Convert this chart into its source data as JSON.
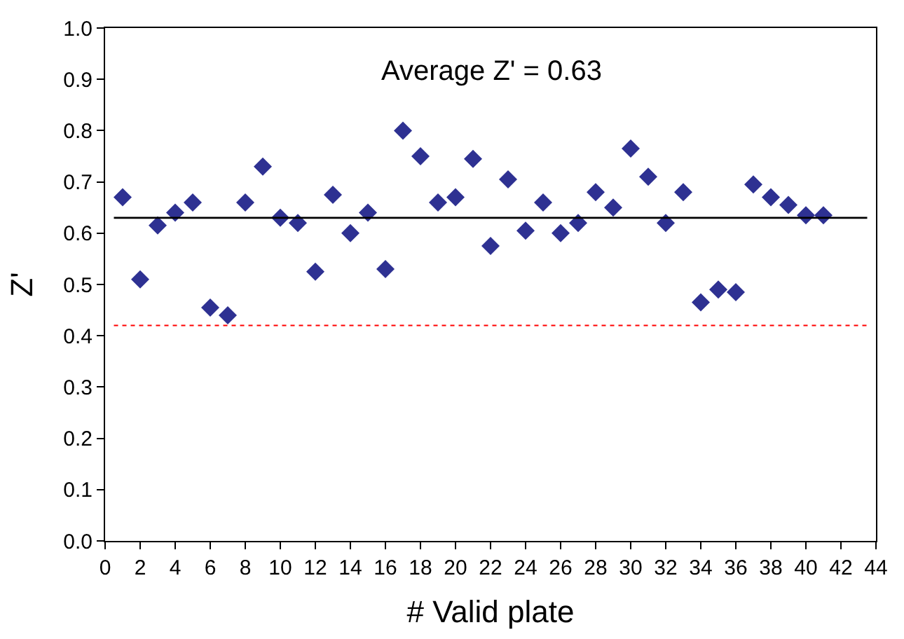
{
  "chart_data": {
    "type": "scatter",
    "xlabel": "# Valid plate",
    "ylabel": "Z'",
    "x": [
      1,
      2,
      3,
      4,
      5,
      6,
      7,
      8,
      9,
      10,
      11,
      12,
      13,
      14,
      15,
      16,
      17,
      18,
      19,
      20,
      21,
      22,
      23,
      24,
      25,
      26,
      27,
      28,
      29,
      30,
      31,
      32,
      33,
      34,
      35,
      36,
      37,
      38,
      39,
      40,
      41
    ],
    "series": [
      {
        "color": "#2e3192",
        "values": [
          0.67,
          0.51,
          0.615,
          0.64,
          0.66,
          0.455,
          0.44,
          0.66,
          0.73,
          0.63,
          0.62,
          0.525,
          0.675,
          0.6,
          0.64,
          0.53,
          0.8,
          0.75,
          0.66,
          0.67,
          0.745,
          0.575,
          0.705,
          0.605,
          0.66,
          0.6,
          0.62,
          0.68,
          0.65,
          0.765,
          0.71,
          0.62,
          0.68,
          0.465,
          0.49,
          0.485,
          0.695,
          0.67,
          0.655,
          0.635,
          0.635
        ]
      }
    ],
    "xlim": [
      0,
      44
    ],
    "xticks": [
      0,
      2,
      4,
      6,
      8,
      10,
      12,
      14,
      16,
      18,
      20,
      22,
      24,
      26,
      28,
      30,
      32,
      34,
      36,
      38,
      40,
      42,
      44
    ],
    "ylim": [
      0,
      1
    ],
    "yticks": [
      {
        "value": 0,
        "label": "0.0"
      },
      {
        "value": 0.1,
        "label": "0.1"
      },
      {
        "value": 0.2,
        "label": "0.2"
      },
      {
        "value": 0.3,
        "label": "0.3"
      },
      {
        "value": 0.4,
        "label": "0.4"
      },
      {
        "value": 0.5,
        "label": "0.5"
      },
      {
        "value": 0.6,
        "label": "0.6"
      },
      {
        "value": 0.7,
        "label": "0.7"
      },
      {
        "value": 0.8,
        "label": "0.8"
      },
      {
        "value": 0.9,
        "label": "0.9"
      },
      {
        "value": 1,
        "label": "1.0"
      }
    ],
    "ref_lines": [
      {
        "axis": "y",
        "value": 0.63,
        "label": "Average Z' = 0.63",
        "color": "#000000",
        "line_style": "solid"
      },
      {
        "axis": "y",
        "value": 0.42,
        "label": null,
        "color": "#ff0000",
        "line_style": "dotted"
      }
    ],
    "marker": "diamond"
  }
}
